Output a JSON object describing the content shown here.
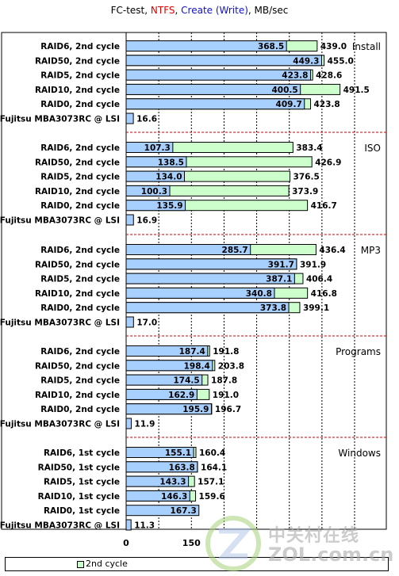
{
  "title": {
    "prefix": "FC-test, ",
    "ntfs": "NTFS",
    "sep1": ", ",
    "create": "Create (Write)",
    "suffix": ", MB/sec"
  },
  "legend": {
    "label": "2nd cycle"
  },
  "colors": {
    "bar_back": "#ccffcc",
    "bar_front": "#a8d0ff",
    "separator": "#cc0000",
    "ntfs": "#e00000",
    "create": "#1010d0"
  },
  "watermark": {
    "cn": "中关村在线",
    "url": "ZOL.com.cn"
  },
  "chart_data": {
    "type": "bar",
    "orientation": "horizontal",
    "x_ticks": [
      "0",
      "150"
    ],
    "xlim": [
      0,
      500
    ],
    "groups": [
      {
        "name": "Install",
        "rows": [
          {
            "label": "RAID6, 2nd cycle",
            "front": 368.5,
            "back": 439.0,
            "front_label": "368.5",
            "back_label": "439.0"
          },
          {
            "label": "RAID50, 2nd cycle",
            "front": 449.3,
            "back": 455.0,
            "front_label": "449.3",
            "back_label": "455.0"
          },
          {
            "label": "RAID5, 2nd cycle",
            "front": 423.8,
            "back": 428.6,
            "front_label": "423.8",
            "back_label": "428.6"
          },
          {
            "label": "RAID10, 2nd cycle",
            "front": 400.5,
            "back": 491.5,
            "front_label": "400.5",
            "back_label": "491.5"
          },
          {
            "label": "RAID0, 2nd cycle",
            "front": 409.7,
            "back": 423.8,
            "front_label": "409.7",
            "back_label": "423.8"
          },
          {
            "label": "Fujitsu MBA3073RC @ LSI",
            "front": 16.6,
            "back": null,
            "front_label": "",
            "back_label": "16.6"
          }
        ]
      },
      {
        "name": "ISO",
        "rows": [
          {
            "label": "RAID6, 2nd cycle",
            "front": 107.3,
            "back": 383.4,
            "front_label": "107.3",
            "back_label": "383.4"
          },
          {
            "label": "RAID50, 2nd cycle",
            "front": 138.5,
            "back": 426.9,
            "front_label": "138.5",
            "back_label": "426.9"
          },
          {
            "label": "RAID5, 2nd cycle",
            "front": 134.0,
            "back": 376.5,
            "front_label": "134.0",
            "back_label": "376.5"
          },
          {
            "label": "RAID10, 2nd cycle",
            "front": 100.3,
            "back": 373.9,
            "front_label": "100.3",
            "back_label": "373.9"
          },
          {
            "label": "RAID0, 2nd cycle",
            "front": 135.9,
            "back": 416.7,
            "front_label": "135.9",
            "back_label": "416.7"
          },
          {
            "label": "Fujitsu MBA3073RC @ LSI",
            "front": 16.9,
            "back": null,
            "front_label": "",
            "back_label": "16.9"
          }
        ]
      },
      {
        "name": "MP3",
        "rows": [
          {
            "label": "RAID6, 2nd cycle",
            "front": 285.7,
            "back": 436.4,
            "front_label": "285.7",
            "back_label": "436.4"
          },
          {
            "label": "RAID50, 2nd cycle",
            "front": 391.7,
            "back": 391.9,
            "front_label": "391.7",
            "back_label": "391.9"
          },
          {
            "label": "RAID5, 2nd cycle",
            "front": 387.1,
            "back": 406.4,
            "front_label": "387.1",
            "back_label": "406.4"
          },
          {
            "label": "RAID10, 2nd cycle",
            "front": 340.8,
            "back": 416.8,
            "front_label": "340.8",
            "back_label": "416.8"
          },
          {
            "label": "RAID0, 2nd cycle",
            "front": 373.8,
            "back": 399.1,
            "front_label": "373.8",
            "back_label": "399.1"
          },
          {
            "label": "Fujitsu MBA3073RC @ LSI",
            "front": 17.0,
            "back": null,
            "front_label": "",
            "back_label": "17.0"
          }
        ]
      },
      {
        "name": "Programs",
        "rows": [
          {
            "label": "RAID6, 2nd cycle",
            "front": 187.4,
            "back": 191.8,
            "front_label": "187.4",
            "back_label": "191.8"
          },
          {
            "label": "RAID50, 2nd cycle",
            "front": 198.4,
            "back": 203.8,
            "front_label": "198.4",
            "back_label": "203.8"
          },
          {
            "label": "RAID5, 2nd cycle",
            "front": 174.5,
            "back": 187.8,
            "front_label": "174.5",
            "back_label": "187.8"
          },
          {
            "label": "RAID10, 2nd cycle",
            "front": 162.9,
            "back": 191.0,
            "front_label": "162.9",
            "back_label": "191.0"
          },
          {
            "label": "RAID0, 2nd cycle",
            "front": 195.9,
            "back": 196.7,
            "front_label": "195.9",
            "back_label": "196.7"
          },
          {
            "label": "Fujitsu MBA3073RC @ LSI",
            "front": 11.9,
            "back": null,
            "front_label": "",
            "back_label": "11.9"
          }
        ]
      },
      {
        "name": "Windows",
        "rows": [
          {
            "label": "RAID6, 1st cycle",
            "front": 155.1,
            "back": 160.4,
            "front_label": "155.1",
            "back_label": "160.4"
          },
          {
            "label": "RAID50, 1st cycle",
            "front": 163.8,
            "back": 164.1,
            "front_label": "163.8",
            "back_label": "164.1"
          },
          {
            "label": "RAID5, 1st cycle",
            "front": 143.3,
            "back": 157.1,
            "front_label": "143.3",
            "back_label": "157.1"
          },
          {
            "label": "RAID10, 1st cycle",
            "front": 146.3,
            "back": 159.6,
            "front_label": "146.3",
            "back_label": "159.6"
          },
          {
            "label": "RAID0, 1st cycle",
            "front": 167.3,
            "back": null,
            "front_label": "167.3",
            "back_label": ""
          },
          {
            "label": "Fujitsu MBA3073RC @ LSI",
            "front": 11.3,
            "back": null,
            "front_label": "",
            "back_label": "11.3"
          }
        ]
      }
    ]
  }
}
